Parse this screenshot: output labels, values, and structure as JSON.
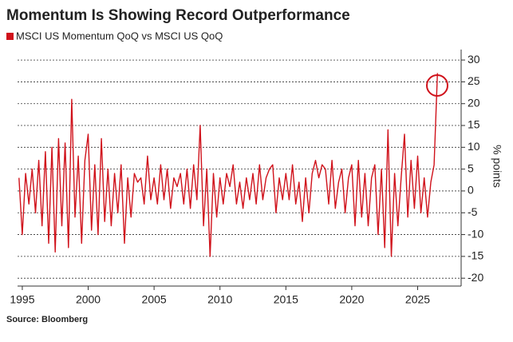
{
  "chart_data": {
    "type": "line",
    "title": "Momentum Is Showing Record Outperformance",
    "y_label": "% points",
    "source": "Source: Bloomberg",
    "x": [
      1994.75,
      1995,
      1995.25,
      1995.5,
      1995.75,
      1996,
      1996.25,
      1996.5,
      1996.75,
      1997,
      1997.25,
      1997.5,
      1997.75,
      1998,
      1998.25,
      1998.5,
      1998.75,
      1999,
      1999.25,
      1999.5,
      1999.75,
      2000,
      2000.25,
      2000.5,
      2000.75,
      2001,
      2001.25,
      2001.5,
      2001.75,
      2002,
      2002.25,
      2002.5,
      2002.75,
      2003,
      2003.25,
      2003.5,
      2003.75,
      2004,
      2004.25,
      2004.5,
      2004.75,
      2005,
      2005.25,
      2005.5,
      2005.75,
      2006,
      2006.25,
      2006.5,
      2006.75,
      2007,
      2007.25,
      2007.5,
      2007.75,
      2008,
      2008.25,
      2008.5,
      2008.75,
      2009,
      2009.25,
      2009.5,
      2009.75,
      2010,
      2010.25,
      2010.5,
      2010.75,
      2011,
      2011.25,
      2011.5,
      2011.75,
      2012,
      2012.25,
      2012.5,
      2012.75,
      2013,
      2013.25,
      2013.5,
      2013.75,
      2014,
      2014.25,
      2014.5,
      2014.75,
      2015,
      2015.25,
      2015.5,
      2015.75,
      2016,
      2016.25,
      2016.5,
      2016.75,
      2017,
      2017.25,
      2017.5,
      2017.75,
      2018,
      2018.25,
      2018.5,
      2018.75,
      2019,
      2019.25,
      2019.5,
      2019.75,
      2020,
      2020.25,
      2020.5,
      2020.75,
      2021,
      2021.25,
      2021.5,
      2021.75,
      2022,
      2022.25,
      2022.5,
      2022.75,
      2023,
      2023.25,
      2023.5,
      2023.75,
      2024,
      2024.25,
      2024.5,
      2024.75,
      2025,
      2025.25,
      2025.5,
      2025.75,
      2026,
      2026.25,
      2026.5
    ],
    "series": [
      {
        "name": "MSCI US Momentum QoQ vs MSCI US QoQ",
        "color": "#d0121b",
        "values": [
          3,
          -10,
          4,
          -3,
          5,
          -5,
          7,
          -8,
          9,
          -12,
          10,
          -14,
          12,
          -8,
          11,
          -13,
          21,
          -6,
          8,
          -12,
          7,
          13,
          -9,
          6,
          -10,
          12,
          -7,
          5,
          -8,
          4,
          -5,
          6,
          -12,
          3,
          -6,
          4,
          2,
          3,
          -3,
          8,
          -2,
          3,
          -3,
          6,
          -2,
          5,
          -4,
          3,
          1,
          4,
          -3,
          5,
          -4,
          6,
          -2,
          15,
          -8,
          5,
          -15,
          4,
          -6,
          3,
          -3,
          4,
          1,
          6,
          -3,
          2,
          -4,
          3,
          -2,
          4,
          -3,
          6,
          -2,
          3,
          5,
          6,
          -5,
          3,
          -2,
          4,
          -2,
          6,
          -3,
          2,
          -7,
          3,
          -5,
          4,
          7,
          3,
          6,
          5,
          -3,
          7,
          -4,
          2,
          5,
          -5,
          3,
          6,
          -8,
          7,
          -6,
          4,
          -8,
          3,
          6,
          -10,
          5,
          -13,
          14,
          -15,
          4,
          -8,
          3,
          13,
          -6,
          7,
          -4,
          8,
          -5,
          3,
          -6,
          2,
          6,
          27
        ]
      }
    ],
    "xlim": [
      1994.64,
      2028.3
    ],
    "xticks": [
      1995,
      2000,
      2005,
      2010,
      2015,
      2020,
      2025
    ],
    "ylim": [
      -21.8,
      32.4
    ],
    "yticks": [
      30,
      25,
      20,
      15,
      10,
      5,
      0,
      -5,
      -10,
      -15,
      -20
    ],
    "grid": true
  }
}
